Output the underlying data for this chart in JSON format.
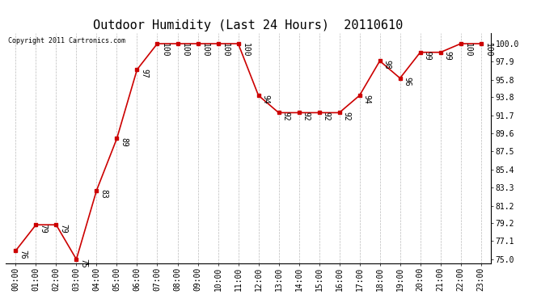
{
  "title": "Outdoor Humidity (Last 24 Hours)  20110610",
  "copyright": "Copyright 2011 Cartronics.com",
  "x_labels": [
    "00:00",
    "01:00",
    "02:00",
    "03:00",
    "04:00",
    "05:00",
    "06:00",
    "07:00",
    "08:00",
    "09:00",
    "10:00",
    "11:00",
    "12:00",
    "13:00",
    "14:00",
    "15:00",
    "16:00",
    "17:00",
    "18:00",
    "19:00",
    "20:00",
    "21:00",
    "22:00",
    "23:00"
  ],
  "y_values": [
    76,
    79,
    79,
    75,
    83,
    89,
    97,
    100,
    100,
    100,
    100,
    100,
    94,
    92,
    92,
    92,
    92,
    94,
    98,
    96,
    99,
    99,
    100,
    100
  ],
  "y_ticks": [
    75.0,
    77.1,
    79.2,
    81.2,
    83.3,
    85.4,
    87.5,
    89.6,
    91.7,
    93.8,
    95.8,
    97.9,
    100.0
  ],
  "ylim": [
    74.5,
    101.2
  ],
  "line_color": "#cc0000",
  "marker_color": "#cc0000",
  "bg_color": "#ffffff",
  "grid_color": "#bbbbbb",
  "title_fontsize": 11,
  "tick_fontsize": 7,
  "annotation_fontsize": 7,
  "copyright_fontsize": 6
}
